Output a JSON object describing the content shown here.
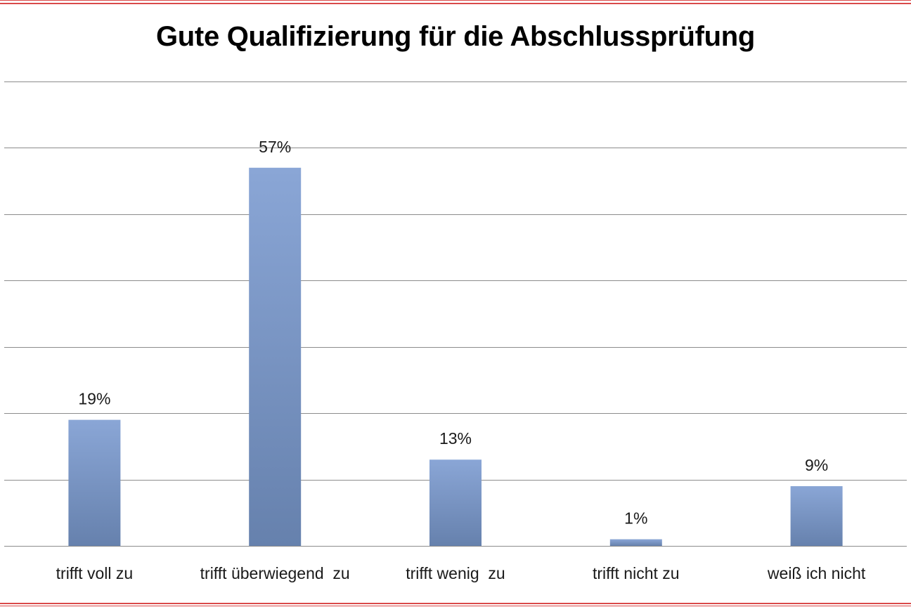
{
  "colors": {
    "frame": "#d94a4a",
    "grid": "#8c8c8c",
    "bar_top": "#8aa6d6",
    "bar_bottom": "#6681ad"
  },
  "chart_data": {
    "type": "bar",
    "title": "Gute Qualifizierung für die Abschlussprüfung",
    "categories": [
      "trifft voll zu",
      "trifft überwiegend  zu",
      "trifft wenig  zu",
      "trifft nicht zu",
      "weiß ich nicht"
    ],
    "values": [
      19,
      57,
      13,
      1,
      9
    ],
    "data_labels": [
      "19%",
      "57%",
      "13%",
      "1%",
      "9%"
    ],
    "ylim": [
      0,
      70
    ],
    "grid_step": 10,
    "grid": true,
    "legend": "none",
    "xlabel": "",
    "ylabel": ""
  }
}
